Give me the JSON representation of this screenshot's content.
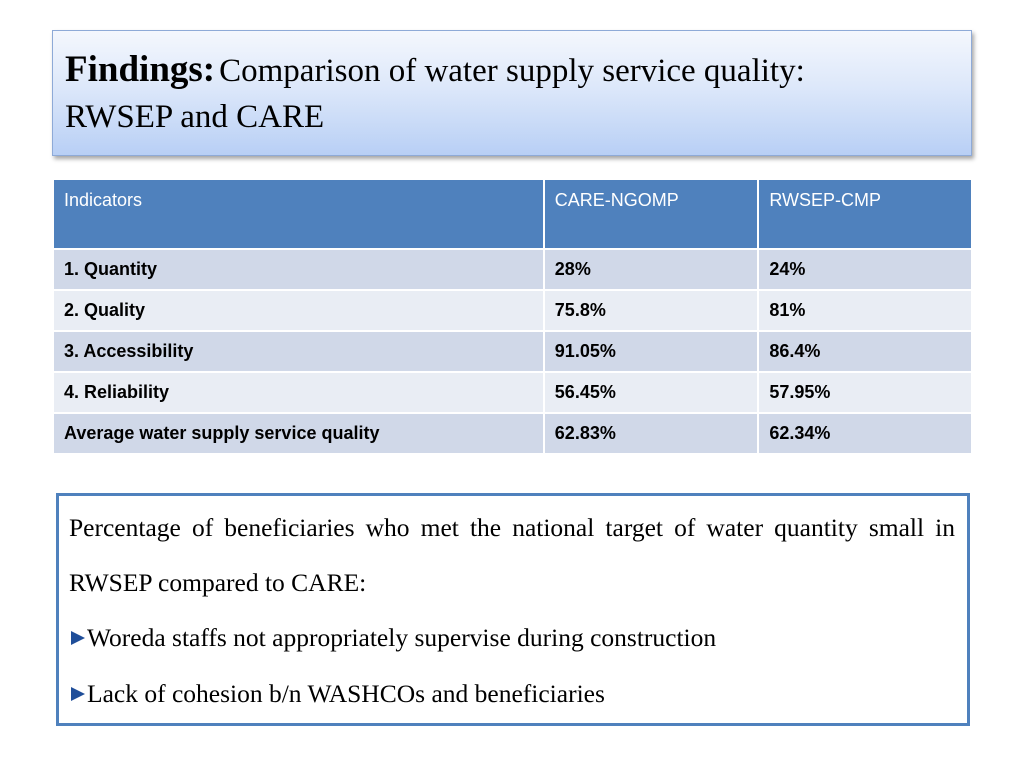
{
  "title": {
    "bold": "Findings:",
    "rest": "Comparison of water supply service quality:",
    "line2": "RWSEP and CARE"
  },
  "table": {
    "headers": [
      "Indicators",
      "CARE-NGOMP",
      "RWSEP-CMP"
    ],
    "rows": [
      [
        "1. Quantity",
        "28%",
        "24%"
      ],
      [
        "2. Quality",
        "75.8%",
        "81%"
      ],
      [
        "3. Accessibility",
        "91.05%",
        "86.4%"
      ],
      [
        "4. Reliability",
        "56.45%",
        "57.95%"
      ],
      [
        "Average water supply service quality",
        "62.83%",
        "62.34%"
      ]
    ]
  },
  "note": {
    "paragraph": "Percentage of beneficiaries who met the national target of water quantity small in RWSEP compared to CARE:",
    "bullets": [
      "Woreda staffs not appropriately supervise during construction",
      "Lack of cohesion b/n WASHCOs and beneficiaries"
    ],
    "bullet_icon": "triangle-bullet-icon"
  },
  "colors": {
    "header_bg": "#4f81bd",
    "row_odd": "#d0d8e8",
    "row_even": "#e9edf4",
    "note_border": "#4f81bd",
    "bullet": "#1f4e99"
  }
}
